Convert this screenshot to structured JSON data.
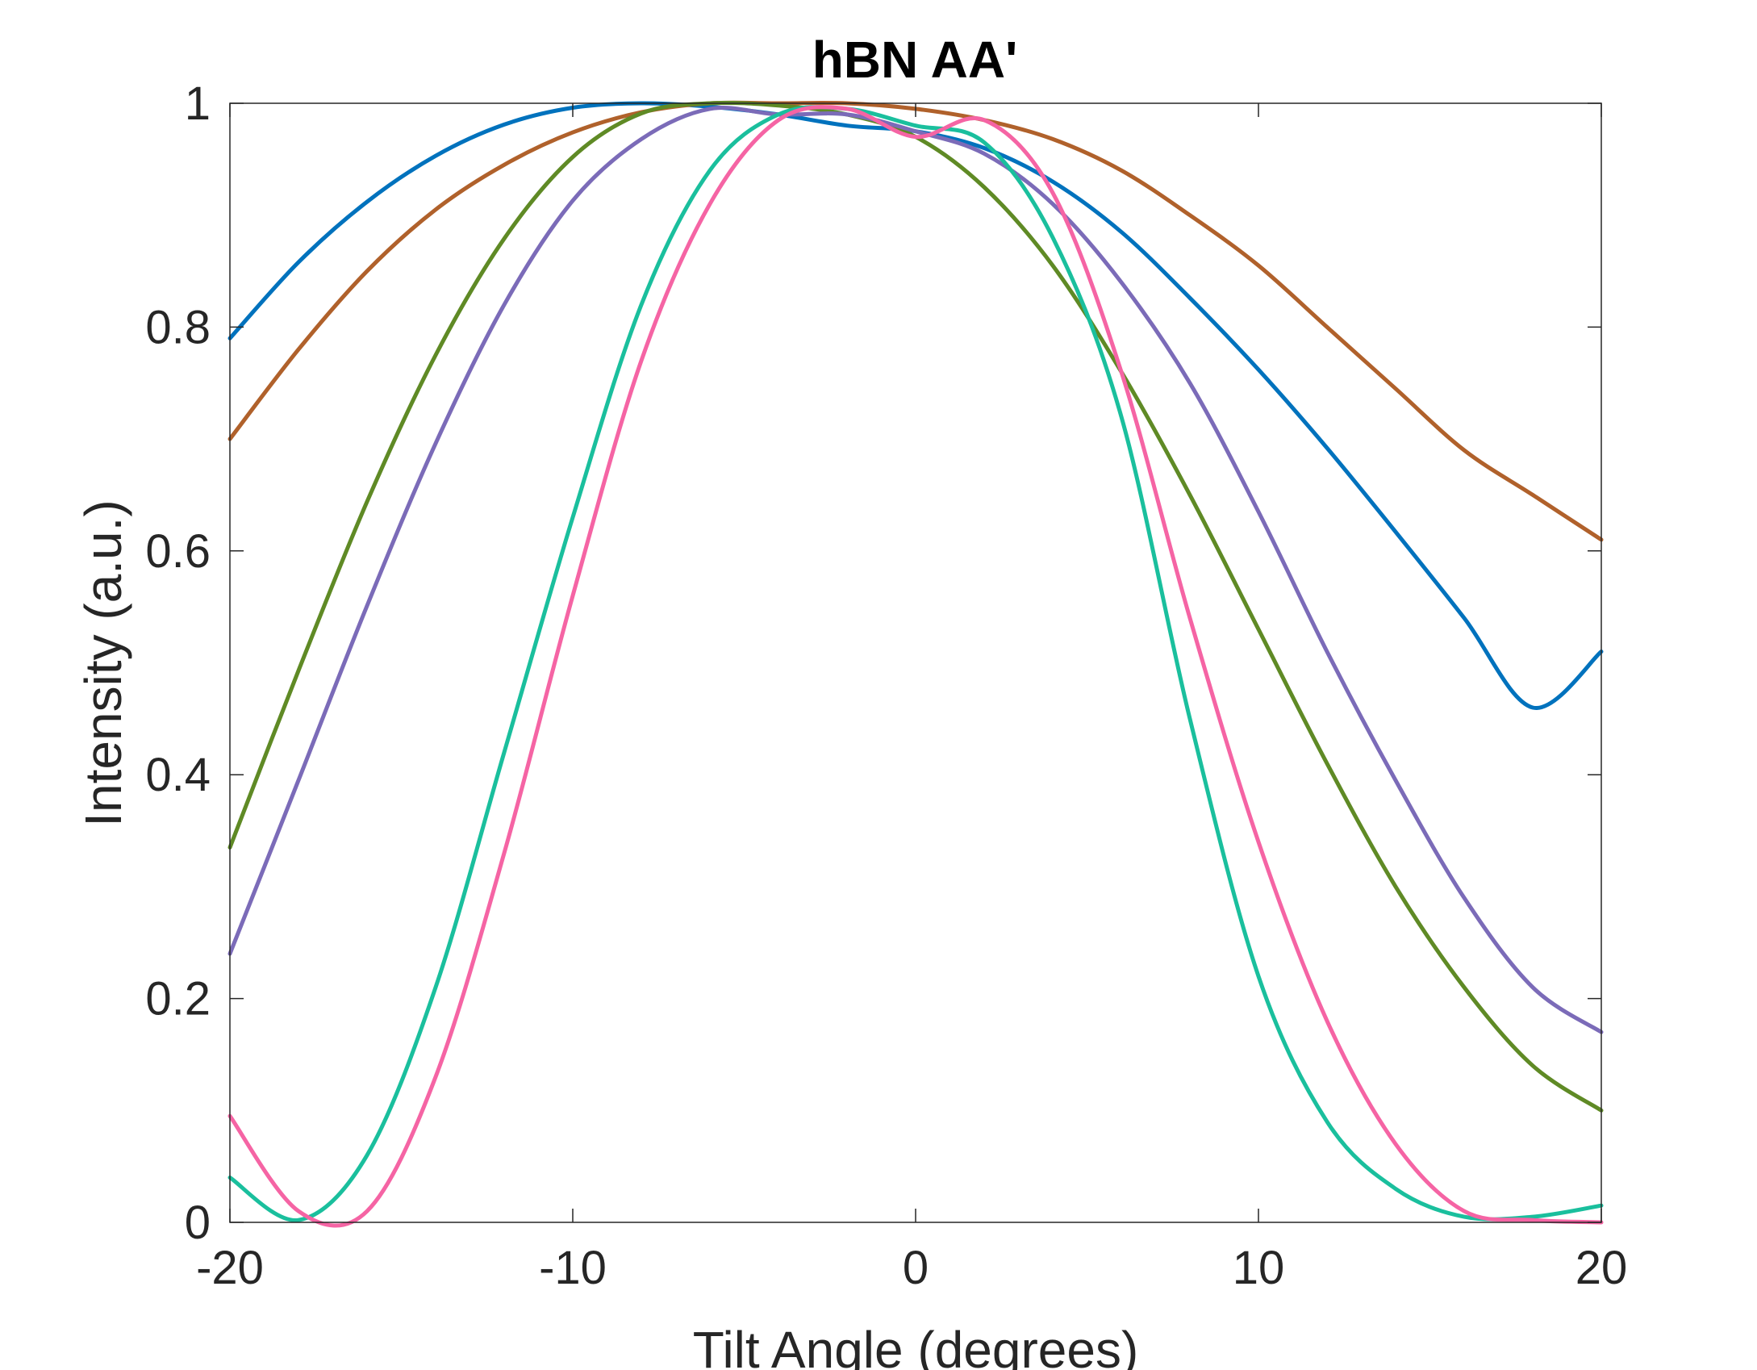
{
  "chart_data": {
    "type": "line",
    "title": "hBN AA'",
    "xlabel": "Tilt Angle (degrees)",
    "ylabel": "Intensity (a.u.)",
    "xlim": [
      -20,
      20
    ],
    "ylim": [
      0,
      1
    ],
    "xticks": [
      -20,
      -10,
      0,
      10,
      20
    ],
    "xtick_labels": [
      "-20",
      "-10",
      "0",
      "10",
      "20"
    ],
    "yticks": [
      0,
      0.2,
      0.4,
      0.6,
      0.8,
      1
    ],
    "ytick_labels": [
      "0",
      "0.2",
      "0.4",
      "0.6",
      "0.8",
      "1"
    ],
    "grid": false,
    "legend": "none",
    "x": [
      -20,
      -18,
      -16,
      -14,
      -12,
      -10,
      -8,
      -6,
      -4,
      -2,
      0,
      2,
      4,
      6,
      8,
      10,
      12,
      14,
      16,
      18,
      20
    ],
    "series": [
      {
        "color": "#0072BD",
        "values": [
          0.79,
          0.858,
          0.912,
          0.953,
          0.981,
          0.996,
          1.0,
          0.997,
          0.99,
          0.98,
          0.975,
          0.96,
          0.93,
          0.885,
          0.826,
          0.762,
          0.692,
          0.617,
          0.54,
          0.46,
          0.51
        ]
      },
      {
        "color": "#B0612B",
        "values": [
          0.7,
          0.78,
          0.85,
          0.905,
          0.945,
          0.974,
          0.992,
          1.0,
          1.0,
          1.0,
          0.995,
          0.985,
          0.968,
          0.94,
          0.9,
          0.855,
          0.8,
          0.745,
          0.69,
          0.65,
          0.61
        ]
      },
      {
        "color": "#5F8A25",
        "values": [
          0.335,
          0.493,
          0.644,
          0.775,
          0.879,
          0.952,
          0.991,
          1.0,
          0.998,
          0.99,
          0.97,
          0.925,
          0.855,
          0.76,
          0.65,
          0.53,
          0.41,
          0.3,
          0.21,
          0.14,
          0.1
        ]
      },
      {
        "color": "#7B6BB8",
        "values": [
          0.24,
          0.395,
          0.551,
          0.696,
          0.82,
          0.913,
          0.968,
          0.995,
          0.99,
          0.99,
          0.975,
          0.955,
          0.91,
          0.84,
          0.75,
          0.635,
          0.51,
          0.395,
          0.29,
          0.21,
          0.17
        ]
      },
      {
        "color": "#1ABF9D",
        "values": [
          0.04,
          0.002,
          0.06,
          0.21,
          0.42,
          0.63,
          0.82,
          0.94,
          0.99,
          0.995,
          0.98,
          0.965,
          0.88,
          0.72,
          0.45,
          0.22,
          0.09,
          0.03,
          0.005,
          0.005,
          0.015
        ]
      },
      {
        "color": "#F564A4",
        "values": [
          0.095,
          0.01,
          0.01,
          0.13,
          0.33,
          0.56,
          0.77,
          0.91,
          0.985,
          0.995,
          0.97,
          0.985,
          0.92,
          0.76,
          0.54,
          0.34,
          0.18,
          0.07,
          0.01,
          0.002,
          0.0
        ]
      }
    ]
  }
}
